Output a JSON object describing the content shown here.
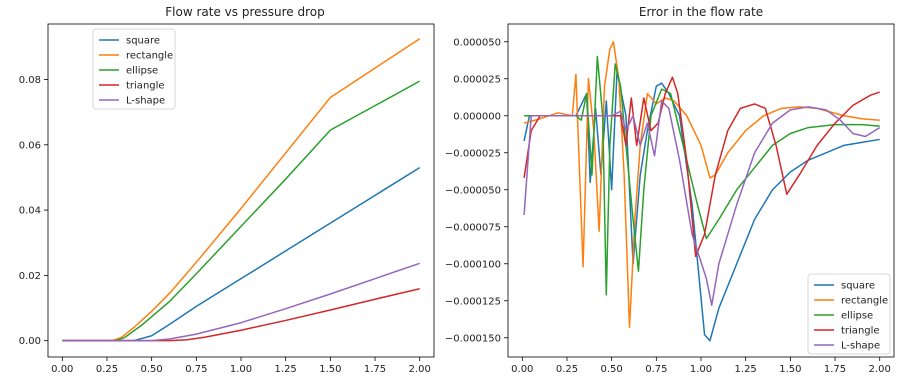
{
  "chart_data": [
    {
      "type": "line",
      "title": "Flow rate vs pressure drop",
      "xlabel": "",
      "ylabel": "",
      "xlim": [
        -0.08,
        2.08
      ],
      "ylim": [
        -0.005,
        0.097
      ],
      "xticks": [
        "0.00",
        "0.25",
        "0.50",
        "0.75",
        "1.00",
        "1.25",
        "1.50",
        "1.75",
        "2.00"
      ],
      "yticks": [
        "0.00",
        "0.02",
        "0.04",
        "0.06",
        "0.08"
      ],
      "legend_position": "top-left",
      "grid": false,
      "series": [
        {
          "name": "square",
          "color": "#1f77b4",
          "points": [
            [
              0,
              0
            ],
            [
              0.3,
              0
            ],
            [
              0.4,
              0
            ],
            [
              0.5,
              0.0015
            ],
            [
              0.6,
              0.005
            ],
            [
              0.75,
              0.0105
            ],
            [
              1.0,
              0.019
            ],
            [
              1.25,
              0.0275
            ],
            [
              1.5,
              0.036
            ],
            [
              1.75,
              0.0445
            ],
            [
              2.0,
              0.053
            ]
          ]
        },
        {
          "name": "rectangle",
          "color": "#ff7f0e",
          "points": [
            [
              0,
              0
            ],
            [
              0.28,
              0
            ],
            [
              0.33,
              0.001
            ],
            [
              0.4,
              0.004
            ],
            [
              0.5,
              0.009
            ],
            [
              0.6,
              0.0145
            ],
            [
              0.75,
              0.024
            ],
            [
              1.0,
              0.0405
            ],
            [
              1.25,
              0.0575
            ],
            [
              1.5,
              0.0745
            ],
            [
              1.75,
              0.0835
            ],
            [
              2.0,
              0.0925
            ]
          ]
        },
        {
          "name": "ellipse",
          "color": "#2ca02c",
          "points": [
            [
              0,
              0
            ],
            [
              0.3,
              0
            ],
            [
              0.35,
              0.001
            ],
            [
              0.45,
              0.005
            ],
            [
              0.6,
              0.012
            ],
            [
              0.75,
              0.0205
            ],
            [
              1.0,
              0.035
            ],
            [
              1.25,
              0.0495
            ],
            [
              1.5,
              0.0645
            ],
            [
              1.75,
              0.072
            ],
            [
              2.0,
              0.0795
            ]
          ]
        },
        {
          "name": "triangle",
          "color": "#d62728",
          "points": [
            [
              0,
              0
            ],
            [
              0.6,
              0
            ],
            [
              0.7,
              0.0003
            ],
            [
              0.8,
              0.0011
            ],
            [
              1.0,
              0.0032
            ],
            [
              1.25,
              0.0062
            ],
            [
              1.5,
              0.0094
            ],
            [
              1.75,
              0.0127
            ],
            [
              2.0,
              0.0159
            ]
          ]
        },
        {
          "name": "L-shape",
          "color": "#9467bd",
          "points": [
            [
              0,
              0
            ],
            [
              0.5,
              0
            ],
            [
              0.6,
              0.0005
            ],
            [
              0.75,
              0.002
            ],
            [
              1.0,
              0.0055
            ],
            [
              1.25,
              0.0098
            ],
            [
              1.5,
              0.0143
            ],
            [
              1.75,
              0.019
            ],
            [
              2.0,
              0.0237
            ]
          ]
        }
      ]
    },
    {
      "type": "line",
      "title": "Error in the flow rate",
      "xlabel": "",
      "ylabel": "",
      "xlim": [
        -0.08,
        2.08
      ],
      "ylim": [
        -0.000163,
        6.2e-05
      ],
      "xticks": [
        "0.00",
        "0.25",
        "0.50",
        "0.75",
        "1.00",
        "1.25",
        "1.50",
        "1.75",
        "2.00"
      ],
      "yticks": [
        "0.000050",
        "0.000025",
        "0.000000",
        "−0.000025",
        "−0.000050",
        "−0.000075",
        "−0.000100",
        "−0.000125",
        "−0.000150"
      ],
      "legend_position": "lower-right",
      "grid": false,
      "series": [
        {
          "name": "square",
          "color": "#1f77b4",
          "points": [
            [
              0.01,
              -1.7e-05
            ],
            [
              0.04,
              0
            ],
            [
              0.3,
              0
            ],
            [
              0.36,
              1.5e-05
            ],
            [
              0.38,
              -4.5e-05
            ],
            [
              0.41,
              5e-06
            ],
            [
              0.44,
              -4e-05
            ],
            [
              0.47,
              1e-05
            ],
            [
              0.5,
              -5e-05
            ],
            [
              0.53,
              3e-05
            ],
            [
              0.58,
              0
            ],
            [
              0.62,
              -0.0001
            ],
            [
              0.66,
              -4e-05
            ],
            [
              0.7,
              -1e-05
            ],
            [
              0.75,
              2e-05
            ],
            [
              0.78,
              2.2e-05
            ],
            [
              0.82,
              1.5e-05
            ],
            [
              0.88,
              0
            ],
            [
              0.95,
              -6e-05
            ],
            [
              1.02,
              -0.000148
            ],
            [
              1.05,
              -0.000152
            ],
            [
              1.1,
              -0.00013
            ],
            [
              1.2,
              -0.0001
            ],
            [
              1.3,
              -7e-05
            ],
            [
              1.4,
              -5e-05
            ],
            [
              1.5,
              -3.8e-05
            ],
            [
              1.6,
              -3e-05
            ],
            [
              1.7,
              -2.5e-05
            ],
            [
              1.8,
              -2e-05
            ],
            [
              1.9,
              -1.8e-05
            ],
            [
              2.0,
              -1.6e-05
            ]
          ]
        },
        {
          "name": "rectangle",
          "color": "#ff7f0e",
          "points": [
            [
              0.01,
              -5e-06
            ],
            [
              0.1,
              -2e-06
            ],
            [
              0.2,
              2e-06
            ],
            [
              0.28,
              0
            ],
            [
              0.3,
              2.8e-05
            ],
            [
              0.34,
              -0.000102
            ],
            [
              0.37,
              2.5e-05
            ],
            [
              0.4,
              -1e-05
            ],
            [
              0.43,
              -7.8e-05
            ],
            [
              0.46,
              2e-05
            ],
            [
              0.49,
              4.5e-05
            ],
            [
              0.51,
              5e-05
            ],
            [
              0.54,
              2.5e-05
            ],
            [
              0.57,
              -4e-05
            ],
            [
              0.6,
              -0.000143
            ],
            [
              0.63,
              -7e-05
            ],
            [
              0.66,
              -2e-05
            ],
            [
              0.7,
              1.5e-05
            ],
            [
              0.75,
              8e-06
            ],
            [
              0.8,
              1.2e-05
            ],
            [
              0.85,
              1e-05
            ],
            [
              0.92,
              0
            ],
            [
              1.0,
              -2e-05
            ],
            [
              1.05,
              -4.2e-05
            ],
            [
              1.08,
              -4e-05
            ],
            [
              1.15,
              -2.5e-05
            ],
            [
              1.25,
              -1e-05
            ],
            [
              1.35,
              0
            ],
            [
              1.45,
              5e-06
            ],
            [
              1.55,
              6e-06
            ],
            [
              1.65,
              5e-06
            ],
            [
              1.8,
              0
            ],
            [
              1.9,
              -2e-06
            ],
            [
              2.0,
              -3e-06
            ]
          ]
        },
        {
          "name": "ellipse",
          "color": "#2ca02c",
          "points": [
            [
              0.01,
              0
            ],
            [
              0.3,
              0
            ],
            [
              0.33,
              -3e-06
            ],
            [
              0.36,
              1.5e-05
            ],
            [
              0.39,
              -4e-05
            ],
            [
              0.42,
              4e-05
            ],
            [
              0.45,
              0
            ],
            [
              0.47,
              -0.000121
            ],
            [
              0.49,
              -2e-05
            ],
            [
              0.52,
              3.5e-05
            ],
            [
              0.55,
              2e-05
            ],
            [
              0.58,
              -2e-05
            ],
            [
              0.62,
              -7e-05
            ],
            [
              0.65,
              -0.000105
            ],
            [
              0.68,
              -5e-05
            ],
            [
              0.72,
              0
            ],
            [
              0.78,
              1.8e-05
            ],
            [
              0.83,
              1.5e-05
            ],
            [
              0.9,
              -2e-05
            ],
            [
              0.98,
              -6e-05
            ],
            [
              1.03,
              -8.3e-05
            ],
            [
              1.1,
              -7e-05
            ],
            [
              1.2,
              -5e-05
            ],
            [
              1.3,
              -3.5e-05
            ],
            [
              1.4,
              -2e-05
            ],
            [
              1.5,
              -1.2e-05
            ],
            [
              1.6,
              -8e-06
            ],
            [
              1.75,
              -6e-06
            ],
            [
              1.9,
              -6e-06
            ],
            [
              2.0,
              -7e-06
            ]
          ]
        },
        {
          "name": "triangle",
          "color": "#d62728",
          "points": [
            [
              0.01,
              -4.2e-05
            ],
            [
              0.05,
              -1e-05
            ],
            [
              0.1,
              0
            ],
            [
              0.55,
              0
            ],
            [
              0.58,
              -2e-05
            ],
            [
              0.61,
              1.2e-05
            ],
            [
              0.64,
              -2e-05
            ],
            [
              0.68,
              1.2e-05
            ],
            [
              0.72,
              -1e-05
            ],
            [
              0.76,
              -5e-06
            ],
            [
              0.8,
              1.5e-05
            ],
            [
              0.84,
              2.6e-05
            ],
            [
              0.87,
              1.5e-05
            ],
            [
              0.92,
              -3e-05
            ],
            [
              0.97,
              -9.5e-05
            ],
            [
              1.02,
              -8e-05
            ],
            [
              1.08,
              -4e-05
            ],
            [
              1.15,
              -1e-05
            ],
            [
              1.22,
              5e-06
            ],
            [
              1.3,
              8e-06
            ],
            [
              1.36,
              5e-06
            ],
            [
              1.42,
              -2e-05
            ],
            [
              1.48,
              -5.3e-05
            ],
            [
              1.55,
              -4e-05
            ],
            [
              1.65,
              -2e-05
            ],
            [
              1.75,
              -5e-06
            ],
            [
              1.85,
              7e-06
            ],
            [
              1.95,
              1.4e-05
            ],
            [
              2.0,
              1.6e-05
            ]
          ]
        },
        {
          "name": "L-shape",
          "color": "#9467bd",
          "points": [
            [
              0.01,
              -6.7e-05
            ],
            [
              0.05,
              0
            ],
            [
              0.5,
              0
            ],
            [
              0.55,
              3e-06
            ],
            [
              0.58,
              -1e-05
            ],
            [
              0.62,
              0
            ],
            [
              0.66,
              -2e-05
            ],
            [
              0.7,
              -5e-06
            ],
            [
              0.74,
              -2.7e-05
            ],
            [
              0.78,
              1e-05
            ],
            [
              0.82,
              5e-06
            ],
            [
              0.88,
              -3e-05
            ],
            [
              0.95,
              -8e-05
            ],
            [
              1.03,
              -0.00011
            ],
            [
              1.06,
              -0.000128
            ],
            [
              1.1,
              -0.0001
            ],
            [
              1.2,
              -6e-05
            ],
            [
              1.3,
              -2.5e-05
            ],
            [
              1.4,
              -5e-06
            ],
            [
              1.5,
              4e-06
            ],
            [
              1.6,
              6e-06
            ],
            [
              1.7,
              4e-06
            ],
            [
              1.78,
              -3e-06
            ],
            [
              1.85,
              -1.2e-05
            ],
            [
              1.92,
              -1.4e-05
            ],
            [
              2.0,
              -8e-06
            ]
          ]
        }
      ]
    }
  ]
}
